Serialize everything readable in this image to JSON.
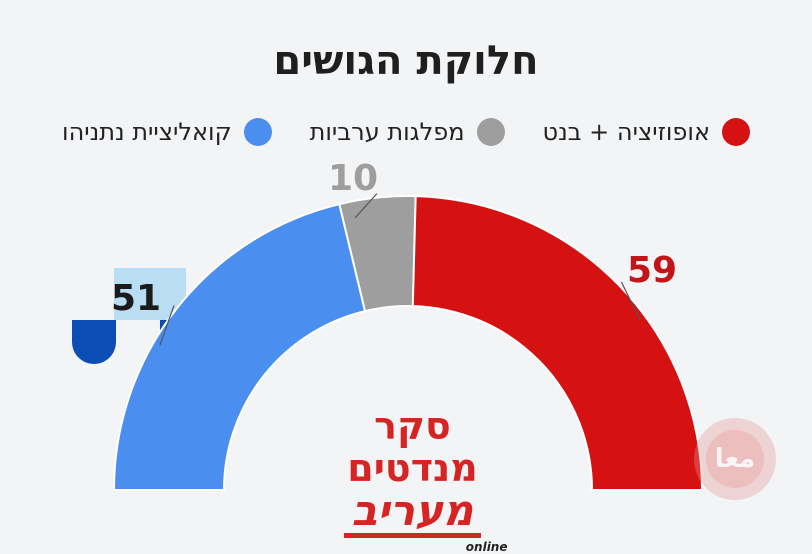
{
  "chart_data": {
    "type": "pie",
    "title": "חלוקת הגושים",
    "slices": [
      {
        "label": "קואליציית נתניהו",
        "value": 51,
        "color": "#4a8ff0"
      },
      {
        "label": "מפלגות ערביות",
        "value": 10,
        "color": "#9e9e9e"
      },
      {
        "label": "אופוזיציה + בנט",
        "value": 59,
        "color": "#d51111"
      }
    ],
    "total": 120,
    "legend_position": "top"
  },
  "legend": [
    {
      "label": "אופוזיציה + בנט",
      "color": "#d51111"
    },
    {
      "label": "מפלגות ערביות",
      "color": "#9e9e9e"
    },
    {
      "label": "קואליציית נתניהו",
      "color": "#4a8ff0"
    }
  ],
  "brand": {
    "top": "סקר מנדטים",
    "main": "מעריב",
    "sub": "online"
  },
  "watermark": "معا"
}
